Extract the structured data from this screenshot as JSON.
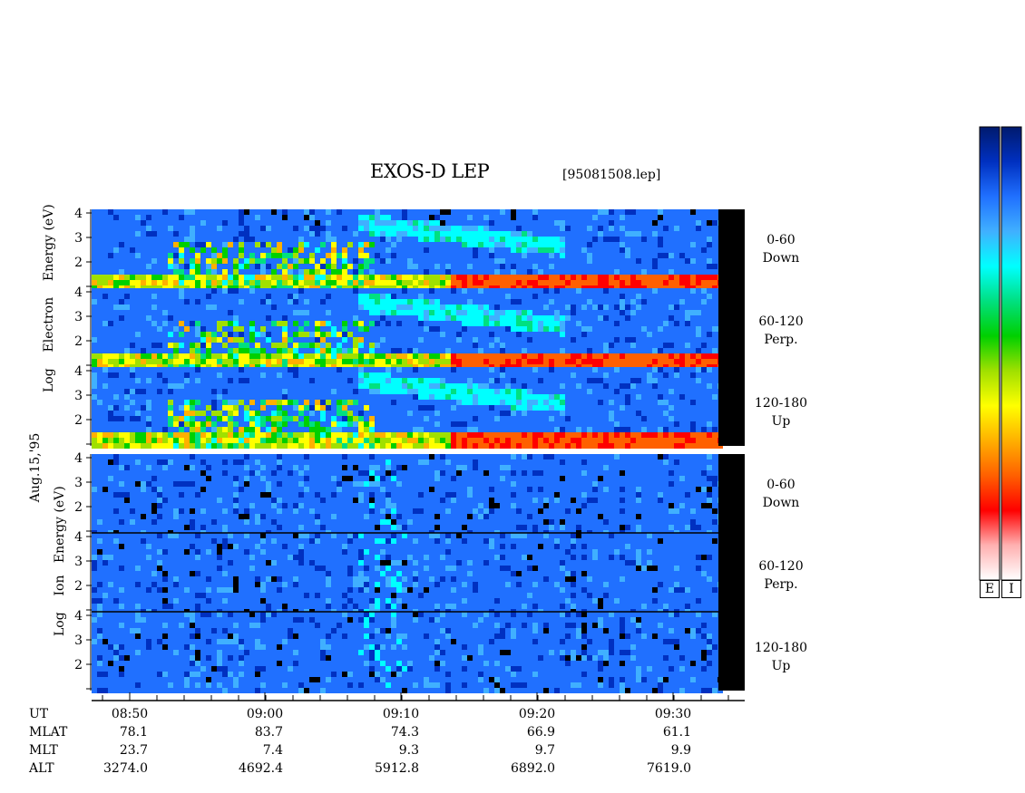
{
  "header": {
    "title": "EXOS-D LEP",
    "filename": "[95081508.lep]"
  },
  "date_label": "Aug.15,'95",
  "electron_axis": {
    "left_label": "Log",
    "mid_label": "Electron",
    "right_label": "Energy (eV)"
  },
  "ion_axis": {
    "left_label": "Log",
    "mid_label": "Ion",
    "right_label": "Energy (eV)"
  },
  "panels": [
    {
      "angle": "0-60",
      "direction": "Down"
    },
    {
      "angle": "60-120",
      "direction": "Perp."
    },
    {
      "angle": "120-180",
      "direction": "Up"
    }
  ],
  "colorbar": {
    "labels": [
      "E",
      "I"
    ],
    "colors": [
      "#001a6e",
      "#0030c0",
      "#2070ff",
      "#40b0ff",
      "#00ffff",
      "#00e080",
      "#00d000",
      "#a0e000",
      "#ffff00",
      "#ffb000",
      "#ff6000",
      "#ff0000",
      "#ffb0b0",
      "#ffffff"
    ]
  },
  "chart_data": {
    "type": "heatmap",
    "title": "EXOS-D LEP",
    "y_ticks": [
      "1",
      "2",
      "3",
      "4"
    ],
    "x_ticks": [
      "08:50",
      "09:00",
      "09:10",
      "09:20",
      "09:30"
    ],
    "ylabel": "Log Energy (eV)",
    "orbit": [
      {
        "label": "UT",
        "values": [
          "08:50",
          "09:00",
          "09:10",
          "09:20",
          "09:30"
        ]
      },
      {
        "label": "MLAT",
        "values": [
          "78.1",
          "83.7",
          "74.3",
          "66.9",
          "61.1"
        ]
      },
      {
        "label": "MLT",
        "values": [
          "23.7",
          "7.4",
          "9.3",
          "9.7",
          "9.9"
        ]
      },
      {
        "label": "ALT",
        "values": [
          "3274.0",
          "4692.4",
          "5912.8",
          "6892.0",
          "7619.0"
        ]
      }
    ]
  }
}
